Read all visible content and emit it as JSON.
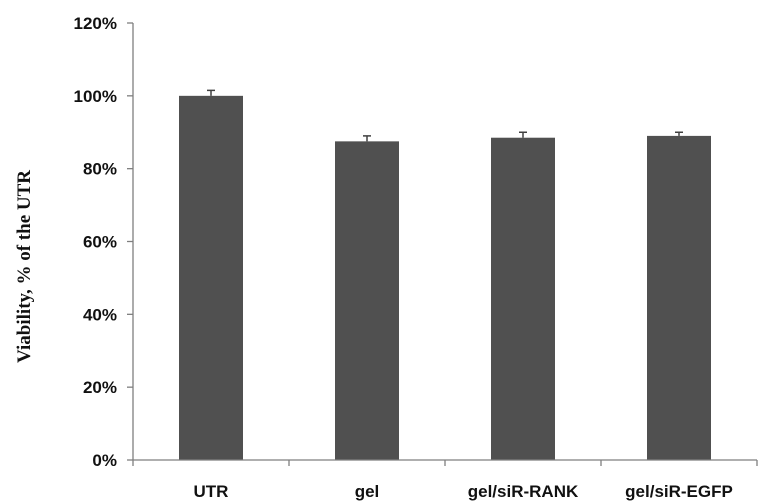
{
  "chart_data": {
    "type": "bar",
    "title": "",
    "xlabel": "",
    "ylabel": "Viability, % of the UTR",
    "categories": [
      "UTR",
      "gel",
      "gel/siR-RANK",
      "gel/siR-EGFP"
    ],
    "values": [
      100,
      87.5,
      88.5,
      89
    ],
    "errors": [
      1.5,
      1.5,
      1.5,
      1
    ],
    "ylim": [
      0,
      120
    ],
    "yticks": [
      0,
      20,
      40,
      60,
      80,
      100,
      120
    ],
    "ytick_labels": [
      "0%",
      "20%",
      "40%",
      "60%",
      "80%",
      "100%",
      "120%"
    ],
    "bar_color": "#505050",
    "grid": false,
    "legend": "none"
  }
}
